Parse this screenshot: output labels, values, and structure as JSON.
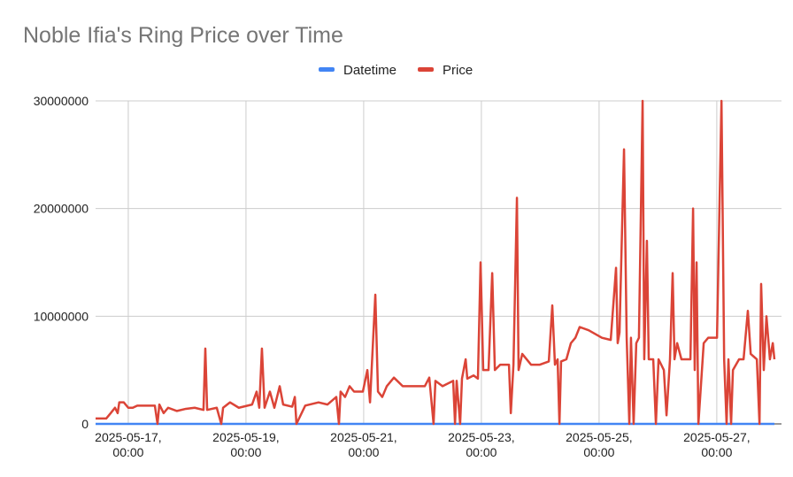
{
  "chart_data": {
    "type": "line",
    "title": "Noble Ifia's Ring Price over Time",
    "x": [
      "2025-05-16 10:40",
      "2025-05-16 15:00",
      "2025-05-16 16:50",
      "2025-05-16 18:35",
      "2025-05-16 19:40",
      "2025-05-16 20:20",
      "2025-05-16 22:10",
      "2025-05-17 00:00",
      "2025-05-17 01:50",
      "2025-05-17 03:40",
      "2025-05-17 10:50",
      "2025-05-17 11:55",
      "2025-05-17 12:40",
      "2025-05-17 14:25",
      "2025-05-17 16:15",
      "2025-05-17 19:50",
      "2025-05-17 23:30",
      "2025-05-18 03:05",
      "2025-05-18 06:40",
      "2025-05-18 07:25",
      "2025-05-18 08:10",
      "2025-05-18 12:05",
      "2025-05-18 13:55",
      "2025-05-18 14:40",
      "2025-05-18 17:30",
      "2025-05-18 21:05",
      "2025-05-19 02:30",
      "2025-05-19 04:20",
      "2025-05-19 05:25",
      "2025-05-19 06:30",
      "2025-05-19 07:35",
      "2025-05-19 09:45",
      "2025-05-19 11:35",
      "2025-05-19 13:45",
      "2025-05-19 15:10",
      "2025-05-19 18:50",
      "2025-05-19 19:55",
      "2025-05-19 20:35",
      "2025-05-20 00:10",
      "2025-05-20 05:35",
      "2025-05-20 09:15",
      "2025-05-20 12:50",
      "2025-05-20 13:55",
      "2025-05-20 14:35",
      "2025-05-20 16:25",
      "2025-05-20 18:15",
      "2025-05-20 20:05",
      "2025-05-20 23:40",
      "2025-05-21 01:30",
      "2025-05-21 02:35",
      "2025-05-21 04:45",
      "2025-05-21 05:50",
      "2025-05-21 07:35",
      "2025-05-21 09:25",
      "2025-05-21 12:20",
      "2025-05-21 15:55",
      "2025-05-21 21:20",
      "2025-05-22 00:55",
      "2025-05-22 02:45",
      "2025-05-22 04:30",
      "2025-05-22 05:15",
      "2025-05-22 08:10",
      "2025-05-22 12:30",
      "2025-05-22 13:15",
      "2025-05-22 13:55",
      "2025-05-22 15:20",
      "2025-05-22 16:05",
      "2025-05-22 17:35",
      "2025-05-22 18:15",
      "2025-05-22 20:50",
      "2025-05-22 22:35",
      "2025-05-22 23:40",
      "2025-05-23 00:45",
      "2025-05-23 02:55",
      "2025-05-23 04:25",
      "2025-05-23 05:30",
      "2025-05-23 07:40",
      "2025-05-23 11:15",
      "2025-05-23 12:00",
      "2025-05-23 13:05",
      "2025-05-23 14:30",
      "2025-05-23 15:10",
      "2025-05-23 16:40",
      "2025-05-23 20:15",
      "2025-05-23 23:50",
      "2025-05-24 03:30",
      "2025-05-24 04:55",
      "2025-05-24 06:00",
      "2025-05-24 07:05",
      "2025-05-24 07:50",
      "2025-05-24 08:30",
      "2025-05-24 10:40",
      "2025-05-24 12:30",
      "2025-05-24 14:20",
      "2025-05-24 16:05",
      "2025-05-24 19:45",
      "2025-05-25 01:10",
      "2025-05-25 04:45",
      "2025-05-25 06:55",
      "2025-05-25 07:35",
      "2025-05-25 08:20",
      "2025-05-25 10:10",
      "2025-05-25 11:15",
      "2025-05-25 12:20",
      "2025-05-25 13:00",
      "2025-05-25 14:05",
      "2025-05-25 15:10",
      "2025-05-25 16:15",
      "2025-05-25 17:45",
      "2025-05-25 18:25",
      "2025-05-25 19:30",
      "2025-05-25 20:15",
      "2025-05-25 22:05",
      "2025-05-25 23:10",
      "2025-05-26 00:15",
      "2025-05-26 02:25",
      "2025-05-26 03:30",
      "2025-05-26 04:55",
      "2025-05-26 06:00",
      "2025-05-26 06:45",
      "2025-05-26 07:50",
      "2025-05-26 09:35",
      "2025-05-26 13:15",
      "2025-05-26 14:20",
      "2025-05-26 15:00",
      "2025-05-26 15:45",
      "2025-05-26 16:30",
      "2025-05-26 18:40",
      "2025-05-26 20:30",
      "2025-05-27 00:05",
      "2025-05-27 01:55",
      "2025-05-27 03:00",
      "2025-05-27 04:00",
      "2025-05-27 04:45",
      "2025-05-27 05:50",
      "2025-05-27 06:35",
      "2025-05-27 09:05",
      "2025-05-27 10:55",
      "2025-05-27 12:40",
      "2025-05-27 13:50",
      "2025-05-27 16:20",
      "2025-05-27 17:25",
      "2025-05-27 18:05",
      "2025-05-27 19:10",
      "2025-05-27 20:15",
      "2025-05-27 21:40",
      "2025-05-27 22:50",
      "2025-05-27 23:30"
    ],
    "series": [
      {
        "name": "Datetime",
        "color": "#4285f4",
        "values": [
          0,
          0,
          0,
          0,
          0,
          0,
          0,
          0,
          0,
          0,
          0,
          0,
          0,
          0,
          0,
          0,
          0,
          0,
          0,
          0,
          0,
          0,
          0,
          0,
          0,
          0,
          0,
          0,
          0,
          0,
          0,
          0,
          0,
          0,
          0,
          0,
          0,
          0,
          0,
          0,
          0,
          0,
          0,
          0,
          0,
          0,
          0,
          0,
          0,
          0,
          0,
          0,
          0,
          0,
          0,
          0,
          0,
          0,
          0,
          0,
          0,
          0,
          0,
          0,
          0,
          0,
          0,
          0,
          0,
          0,
          0,
          0,
          0,
          0,
          0,
          0,
          0,
          0,
          0,
          0,
          0,
          0,
          0,
          0,
          0,
          0,
          0,
          0,
          0,
          0,
          0,
          0,
          0,
          0,
          0,
          0,
          0,
          0,
          0,
          0,
          0,
          0,
          0,
          0,
          0,
          0,
          0,
          0,
          0,
          0,
          0,
          0,
          0,
          0,
          0,
          0,
          0,
          0,
          0,
          0,
          0,
          0,
          0,
          0,
          0,
          0,
          0,
          0,
          0,
          0,
          0,
          0,
          0,
          0,
          0,
          0,
          0,
          0,
          0,
          0,
          0,
          0,
          0,
          0,
          0,
          0,
          0,
          0
        ]
      },
      {
        "name": "Price",
        "color": "#db4437",
        "values": [
          500000,
          500000,
          1000000,
          1500000,
          1000000,
          2000000,
          2000000,
          1500000,
          1500000,
          1700000,
          1700000,
          0,
          1800000,
          1000000,
          1500000,
          1200000,
          1400000,
          1500000,
          1300000,
          7000000,
          1300000,
          1500000,
          0,
          1500000,
          2000000,
          1500000,
          1800000,
          3000000,
          1500000,
          7000000,
          1500000,
          3000000,
          1500000,
          3500000,
          1800000,
          1600000,
          2500000,
          0,
          1700000,
          2000000,
          1800000,
          2500000,
          0,
          3000000,
          2500000,
          3500000,
          3000000,
          3000000,
          5000000,
          2000000,
          12000000,
          3000000,
          2500000,
          3500000,
          4300000,
          3500000,
          3500000,
          3500000,
          4300000,
          0,
          4000000,
          3500000,
          4000000,
          0,
          4000000,
          0,
          4200000,
          6000000,
          4200000,
          4500000,
          4200000,
          15000000,
          5000000,
          5000000,
          14000000,
          5000000,
          5500000,
          5500000,
          1000000,
          5500000,
          21000000,
          5000000,
          6500000,
          5500000,
          5500000,
          5800000,
          11000000,
          5500000,
          6000000,
          0,
          5800000,
          6000000,
          7500000,
          8000000,
          9000000,
          8700000,
          8000000,
          7800000,
          14500000,
          7500000,
          8500000,
          25500000,
          8000000,
          0,
          8000000,
          0,
          7500000,
          8000000,
          30000000,
          6000000,
          17000000,
          6000000,
          6000000,
          0,
          6000000,
          5000000,
          800000,
          6000000,
          14000000,
          6000000,
          7500000,
          6000000,
          6000000,
          20000000,
          5000000,
          15000000,
          0,
          7500000,
          8000000,
          8000000,
          30000000,
          6000000,
          0,
          6000000,
          0,
          5000000,
          6000000,
          6000000,
          10500000,
          6500000,
          6000000,
          0,
          13000000,
          5000000,
          10000000,
          6000000,
          7500000,
          6000000
        ]
      }
    ],
    "xlim": [
      "2025-05-16 10:40",
      "2025-05-27 23:30"
    ],
    "xticks": [
      {
        "value": "2025-05-17 00:00",
        "label": "2025-05-17, 00:00"
      },
      {
        "value": "2025-05-19 00:00",
        "label": "2025-05-19, 00:00"
      },
      {
        "value": "2025-05-21 00:00",
        "label": "2025-05-21, 00:00"
      },
      {
        "value": "2025-05-23 00:00",
        "label": "2025-05-23, 00:00"
      },
      {
        "value": "2025-05-25 00:00",
        "label": "2025-05-25, 00:00"
      },
      {
        "value": "2025-05-27 00:00",
        "label": "2025-05-27, 00:00"
      }
    ],
    "ylim": [
      0,
      30000000
    ],
    "yticks": [
      0,
      10000000,
      20000000,
      30000000
    ],
    "grid": true,
    "legend": "top"
  }
}
